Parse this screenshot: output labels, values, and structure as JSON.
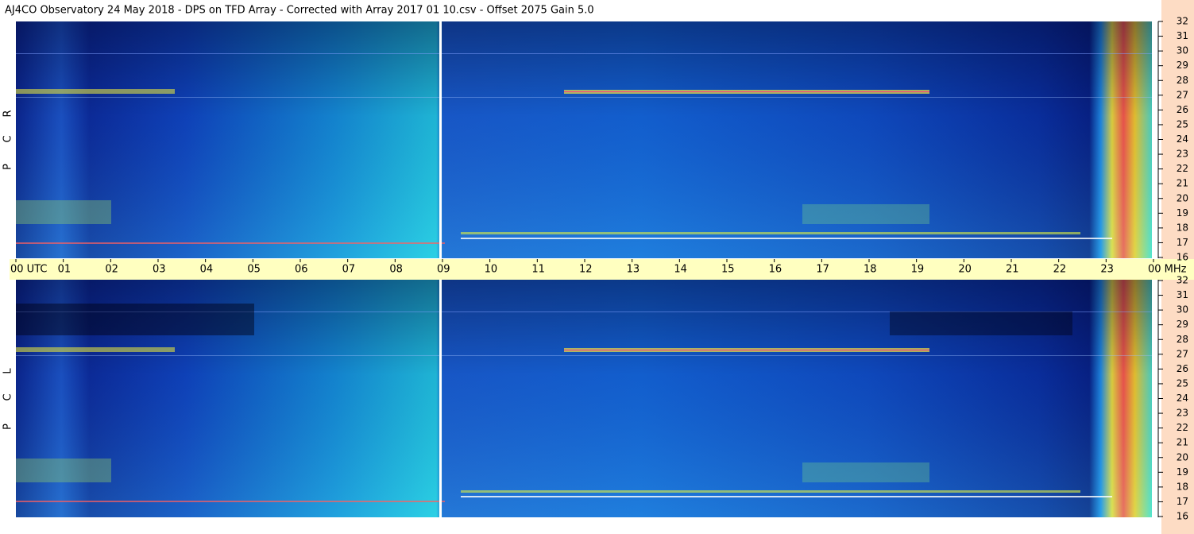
{
  "header": {
    "title": "AJ4CO Observatory  24 May 2018  -  DPS on TFD Array  -  Corrected with Array 2017 01 10.csv  -  Offset 2075  Gain 5.0"
  },
  "panels": [
    {
      "label": [
        "R",
        "C",
        "P"
      ]
    },
    {
      "label": [
        "L",
        "C",
        "P"
      ]
    }
  ],
  "time_labels": [
    "00 UTC",
    "01",
    "02",
    "03",
    "04",
    "05",
    "06",
    "07",
    "08",
    "09",
    "10",
    "11",
    "12",
    "13",
    "14",
    "15",
    "16",
    "17",
    "18",
    "19",
    "20",
    "21",
    "22",
    "23",
    "00 MHz"
  ],
  "freq_labels": [
    32,
    31,
    30,
    29,
    28,
    27,
    26,
    25,
    24,
    23,
    22,
    21,
    20,
    19,
    18,
    17,
    16
  ]
}
